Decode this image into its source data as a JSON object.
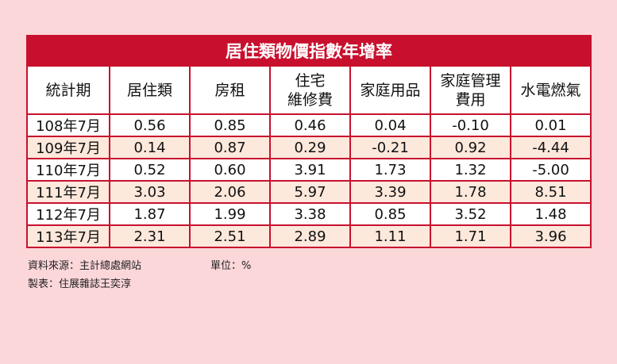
{
  "title": "居住類物價指數年增率",
  "header": [
    [
      "統計期"
    ],
    [
      "居住類"
    ],
    [
      "房租"
    ],
    [
      "住宅",
      "維修費"
    ],
    [
      "家庭用品"
    ],
    [
      "家庭管理",
      "費用"
    ],
    [
      "水電燃氣"
    ]
  ],
  "rows": [
    [
      "108年7月",
      "0.56",
      "0.85",
      "0.46",
      "0.04",
      "-0.10",
      "0.01"
    ],
    [
      "109年7月",
      "0.14",
      "0.87",
      "0.29",
      "-0.21",
      "0.92",
      "-4.44"
    ],
    [
      "110年7月",
      "0.52",
      "0.60",
      "3.91",
      "1.73",
      "1.32",
      "-5.00"
    ],
    [
      "111年7月",
      "3.03",
      "2.06",
      "5.97",
      "3.39",
      "1.78",
      "8.51"
    ],
    [
      "112年7月",
      "1.87",
      "1.99",
      "3.38",
      "0.85",
      "3.52",
      "1.48"
    ],
    [
      "113年7月",
      "2.31",
      "2.51",
      "2.89",
      "1.11",
      "1.71",
      "3.96"
    ]
  ],
  "notes": {
    "source": "資料來源：主計總處網站",
    "unit": "單位：%",
    "author": "製表：住展雜誌王奕淳"
  }
}
